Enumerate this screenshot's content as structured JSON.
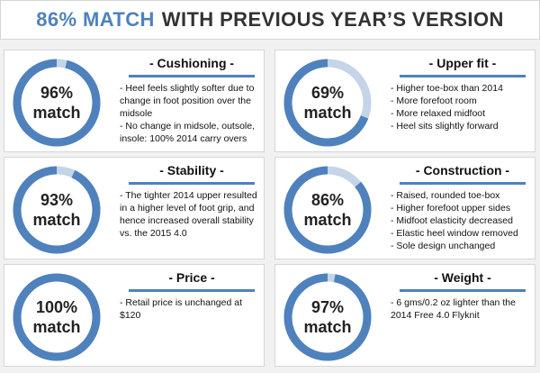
{
  "header": {
    "accent_text": "86% MATCH",
    "rest_text": "WITH PREVIOUS YEAR’S VERSION"
  },
  "colors": {
    "accent": "#4f81bd",
    "ring_track": "#c5d5e8"
  },
  "cards": [
    {
      "id": "cushioning",
      "title": "- Cushioning -",
      "percent_text": "96%",
      "match_text": "match",
      "percent_value": 96,
      "bullets": [
        "- Heel feels slightly softer due to change in foot position over the midsole",
        "- No change in midsole, outsole, insole: 100% 2014 carry overs"
      ]
    },
    {
      "id": "upper-fit",
      "title": "- Upper fit -",
      "percent_text": "69%",
      "match_text": "match",
      "percent_value": 69,
      "bullets": [
        "- Higher toe-box than 2014",
        "- More forefoot room",
        "- More relaxed midfoot",
        "- Heel sits slightly forward"
      ]
    },
    {
      "id": "stability",
      "title": "- Stability -",
      "percent_text": "93%",
      "match_text": "match",
      "percent_value": 93,
      "bullets": [
        "- The tighter 2014 upper resulted in a higher level of foot grip, and hence increased overall stability vs. the 2015 4.0"
      ]
    },
    {
      "id": "construction",
      "title": "- Construction -",
      "percent_text": "86%",
      "match_text": "match",
      "percent_value": 86,
      "bullets": [
        "- Raised, rounded toe-box",
        "- Higher forefoot upper sides",
        "- Midfoot elasticity decreased",
        "- Elastic heel window removed",
        "- Sole design unchanged"
      ]
    },
    {
      "id": "price",
      "title": "- Price -",
      "percent_text": "100%",
      "match_text": "match",
      "percent_value": 100,
      "bullets": [
        "- Retail price is unchanged at $120"
      ]
    },
    {
      "id": "weight",
      "title": "- Weight -",
      "percent_text": "97%",
      "match_text": "match",
      "percent_value": 97,
      "bullets": [
        "- 6 gms/0.2 oz lighter than the 2014 Free 4.0 Flyknit"
      ]
    }
  ]
}
